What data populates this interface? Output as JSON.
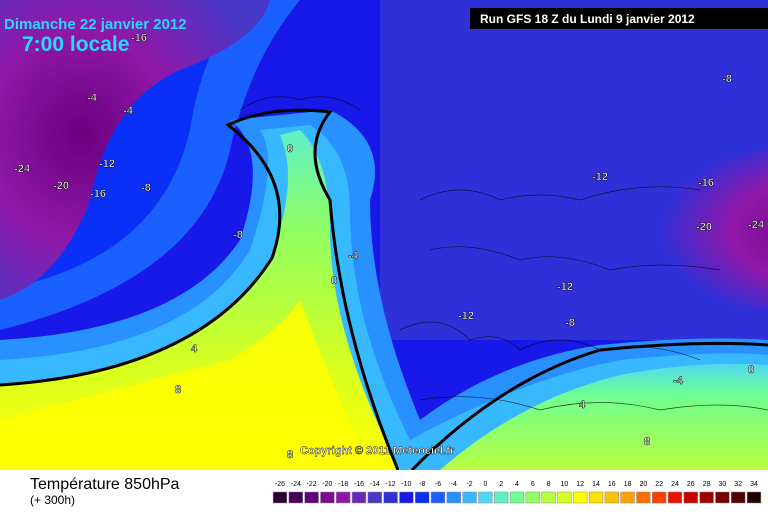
{
  "header": {
    "date": "Dimanche 22 janvier 2012",
    "time": "7:00 locale",
    "run": "Run GFS 18 Z du Lundi 9 janvier 2012"
  },
  "copyright": "Copyright © 2011 Meteociel.fr",
  "footer": {
    "title": "Température 850hPa",
    "subtitle": "(+ 300h)"
  },
  "isotherm_labels": [
    -16,
    -4,
    -4,
    -24,
    -20,
    -12,
    -16,
    -8,
    -8,
    0,
    -4,
    0,
    4,
    8,
    -12,
    -8,
    -16,
    -20,
    -24,
    -12,
    -12,
    -8,
    -4,
    0,
    4,
    8,
    8
  ],
  "legend": {
    "ticks": [
      -26,
      -24,
      -22,
      -20,
      -18,
      -16,
      -14,
      -12,
      -10,
      -8,
      -6,
      -4,
      -2,
      0,
      2,
      4,
      6,
      8,
      10,
      12,
      14,
      16,
      18,
      20,
      22,
      24,
      26,
      28,
      30,
      32,
      34
    ],
    "colors": [
      "#2a0030",
      "#45005a",
      "#620078",
      "#7c0a90",
      "#9018a8",
      "#6a28b8",
      "#4838c8",
      "#3030d8",
      "#1818e8",
      "#0a30f8",
      "#1a60ff",
      "#2890ff",
      "#38b8ff",
      "#50d8f0",
      "#60f0c8",
      "#70ff90",
      "#90ff60",
      "#b8ff40",
      "#d8ff20",
      "#ffff00",
      "#ffe000",
      "#ffc000",
      "#ffa000",
      "#ff7000",
      "#ff4000",
      "#f01000",
      "#c80000",
      "#a00000",
      "#780000",
      "#500000",
      "#200000"
    ]
  }
}
